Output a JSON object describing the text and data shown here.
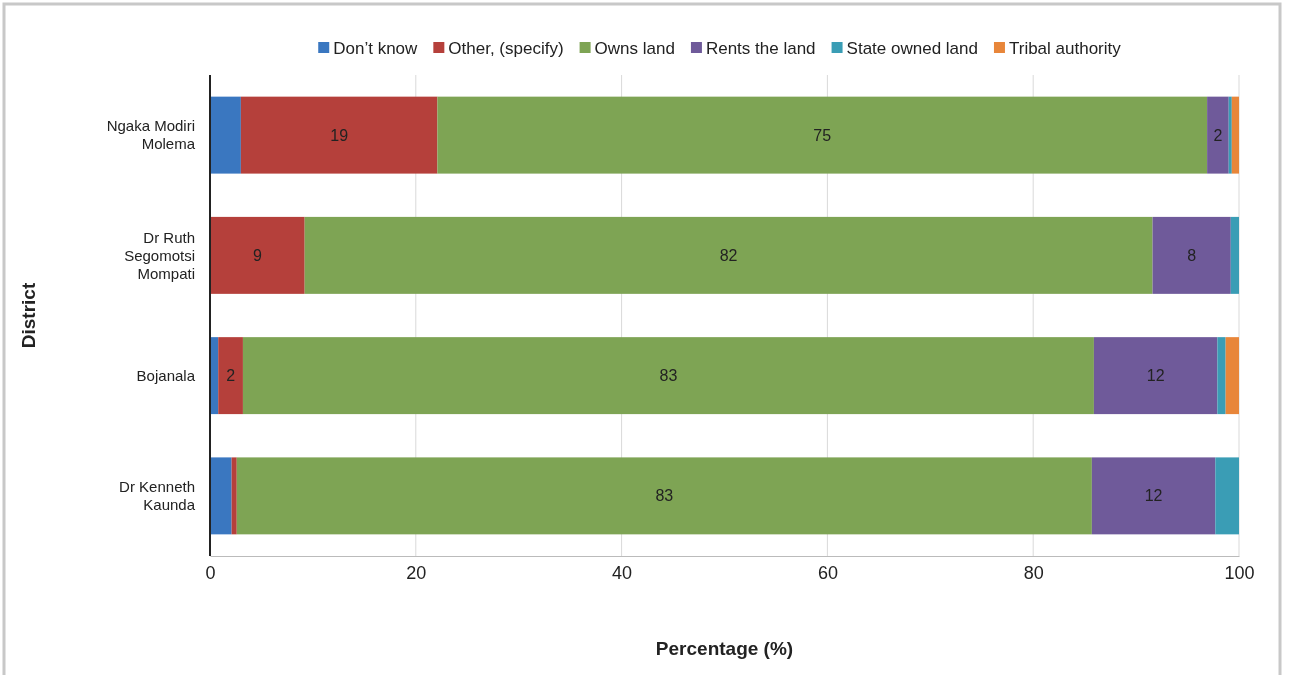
{
  "chart_data": {
    "type": "bar",
    "orientation": "horizontal",
    "stacked": true,
    "xlabel": "Percentage (%)",
    "ylabel": "District",
    "categories": [
      "Ngaka Modiri Molema",
      "Dr Ruth Segomotsi Mompati",
      "Bojanala",
      "Dr Kenneth Kaunda"
    ],
    "series": [
      {
        "name": "Don’t know",
        "color": "#3a77c0",
        "values": [
          3,
          0,
          0.8,
          2.1
        ],
        "value_labels": [
          null,
          null,
          null,
          null
        ]
      },
      {
        "name": "Other, (specify)",
        "color": "#b5403b",
        "values": [
          19.1,
          9.2,
          2.4,
          0.5
        ],
        "value_labels": [
          "19",
          "9",
          "2",
          null
        ]
      },
      {
        "name": "Owns land",
        "color": "#7ea454",
        "values": [
          74.8,
          82.4,
          82.7,
          83.1
        ],
        "value_labels": [
          "75",
          "82",
          "83",
          "83"
        ]
      },
      {
        "name": "Rents the land",
        "color": "#6f5a9a",
        "values": [
          2.1,
          7.6,
          12,
          12
        ],
        "value_labels": [
          "2",
          "8",
          "12",
          "12"
        ]
      },
      {
        "name": "State owned land",
        "color": "#3a9db5",
        "values": [
          0.3,
          0.8,
          0.8,
          2.3
        ],
        "value_labels": [
          null,
          null,
          null,
          null
        ]
      },
      {
        "name": "Tribal authority",
        "color": "#e8863a",
        "values": [
          0.7,
          0,
          1.3,
          0
        ],
        "value_labels": [
          null,
          null,
          null,
          null
        ]
      }
    ],
    "xlim": [
      0,
      100
    ],
    "xticks": [
      0,
      20,
      40,
      60,
      80,
      100
    ],
    "grid": "x",
    "legend": "top"
  }
}
